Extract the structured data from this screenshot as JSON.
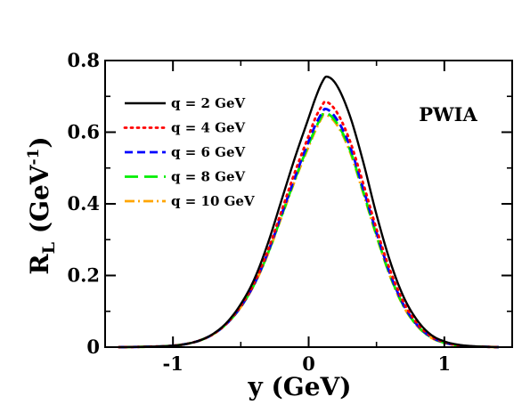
{
  "chart_data": {
    "type": "line",
    "xlabel": "y (GeV)",
    "ylabel_main": "R",
    "ylabel_sub": "L",
    "ylabel_unit": " (GeV",
    "ylabel_exp": "-1",
    "ylabel_close": ")",
    "xlim": [
      -1.5,
      1.5
    ],
    "ylim": [
      0,
      0.8
    ],
    "xticks": [
      {
        "value": -1,
        "label": "-1"
      },
      {
        "value": 0,
        "label": "0"
      },
      {
        "value": 1,
        "label": "1"
      }
    ],
    "yticks": [
      {
        "value": 0,
        "label": "0"
      },
      {
        "value": 0.2,
        "label": "0.2"
      },
      {
        "value": 0.4,
        "label": "0.4"
      },
      {
        "value": 0.6,
        "label": "0.6"
      },
      {
        "value": 0.8,
        "label": "0.8"
      }
    ],
    "annotation": "PWIA",
    "legend_position": "top-left",
    "grid": false,
    "series": [
      {
        "name": "q = 2 GeV",
        "color": "#000000",
        "dash": "solid",
        "peak": {
          "x": 0.13,
          "y": 0.755
        },
        "x": [
          -1.4,
          -1.2,
          -1.0,
          -0.9,
          -0.8,
          -0.7,
          -0.6,
          -0.5,
          -0.4,
          -0.3,
          -0.2,
          -0.1,
          0.0,
          0.05,
          0.1,
          0.13,
          0.2,
          0.3,
          0.4,
          0.5,
          0.6,
          0.7,
          0.8,
          0.9,
          1.0,
          1.1,
          1.2,
          1.3,
          1.4
        ],
        "y": [
          0.0,
          0.001,
          0.004,
          0.009,
          0.019,
          0.038,
          0.07,
          0.12,
          0.19,
          0.29,
          0.41,
          0.53,
          0.64,
          0.695,
          0.74,
          0.755,
          0.735,
          0.65,
          0.52,
          0.37,
          0.24,
          0.14,
          0.075,
          0.035,
          0.016,
          0.007,
          0.003,
          0.001,
          0.0
        ]
      },
      {
        "name": "q = 4 GeV",
        "color": "#ff0000",
        "dash": "dotted",
        "peak": {
          "x": 0.12,
          "y": 0.685
        },
        "x": [
          -1.4,
          -1.2,
          -1.0,
          -0.9,
          -0.8,
          -0.7,
          -0.6,
          -0.5,
          -0.4,
          -0.3,
          -0.2,
          -0.1,
          0.0,
          0.05,
          0.1,
          0.12,
          0.2,
          0.3,
          0.4,
          0.5,
          0.6,
          0.7,
          0.8,
          0.9,
          1.0,
          1.1,
          1.2,
          1.3,
          1.4
        ],
        "y": [
          0.0,
          0.001,
          0.004,
          0.009,
          0.019,
          0.037,
          0.068,
          0.115,
          0.18,
          0.27,
          0.38,
          0.49,
          0.59,
          0.64,
          0.675,
          0.685,
          0.66,
          0.58,
          0.46,
          0.33,
          0.215,
          0.125,
          0.066,
          0.031,
          0.014,
          0.006,
          0.002,
          0.001,
          0.0
        ]
      },
      {
        "name": "q = 6 GeV",
        "color": "#0000ff",
        "dash": "dashed",
        "peak": {
          "x": 0.12,
          "y": 0.665
        },
        "x": [
          -1.4,
          -1.2,
          -1.0,
          -0.9,
          -0.8,
          -0.7,
          -0.6,
          -0.5,
          -0.4,
          -0.3,
          -0.2,
          -0.1,
          0.0,
          0.05,
          0.1,
          0.12,
          0.2,
          0.3,
          0.4,
          0.5,
          0.6,
          0.7,
          0.8,
          0.9,
          1.0,
          1.1,
          1.2,
          1.3,
          1.4
        ],
        "y": [
          0.0,
          0.001,
          0.004,
          0.009,
          0.019,
          0.037,
          0.067,
          0.113,
          0.177,
          0.265,
          0.37,
          0.475,
          0.575,
          0.62,
          0.655,
          0.665,
          0.64,
          0.565,
          0.445,
          0.32,
          0.205,
          0.118,
          0.062,
          0.029,
          0.013,
          0.005,
          0.002,
          0.001,
          0.0
        ]
      },
      {
        "name": "q = 8 GeV",
        "color": "#00ee00",
        "dash": "longdash",
        "peak": {
          "x": 0.11,
          "y": 0.655
        },
        "x": [
          -1.4,
          -1.2,
          -1.0,
          -0.9,
          -0.8,
          -0.7,
          -0.6,
          -0.5,
          -0.4,
          -0.3,
          -0.2,
          -0.1,
          0.0,
          0.05,
          0.1,
          0.11,
          0.2,
          0.3,
          0.4,
          0.5,
          0.6,
          0.7,
          0.8,
          0.9,
          1.0,
          1.1,
          1.2,
          1.3,
          1.4
        ],
        "y": [
          0.0,
          0.001,
          0.004,
          0.009,
          0.019,
          0.037,
          0.067,
          0.112,
          0.176,
          0.262,
          0.366,
          0.47,
          0.566,
          0.61,
          0.648,
          0.655,
          0.63,
          0.555,
          0.437,
          0.313,
          0.2,
          0.115,
          0.06,
          0.028,
          0.012,
          0.005,
          0.002,
          0.001,
          0.0
        ]
      },
      {
        "name": "q = 10 GeV",
        "color": "#ffa500",
        "dash": "dashdot",
        "peak": {
          "x": 0.11,
          "y": 0.65
        },
        "x": [
          -1.4,
          -1.2,
          -1.0,
          -0.9,
          -0.8,
          -0.7,
          -0.6,
          -0.5,
          -0.4,
          -0.3,
          -0.2,
          -0.1,
          0.0,
          0.05,
          0.1,
          0.11,
          0.2,
          0.3,
          0.4,
          0.5,
          0.6,
          0.7,
          0.8,
          0.9,
          1.0,
          1.1,
          1.2,
          1.3,
          1.4
        ],
        "y": [
          0.0,
          0.001,
          0.004,
          0.009,
          0.019,
          0.037,
          0.067,
          0.112,
          0.175,
          0.26,
          0.363,
          0.466,
          0.56,
          0.605,
          0.643,
          0.65,
          0.625,
          0.55,
          0.433,
          0.31,
          0.198,
          0.113,
          0.059,
          0.027,
          0.012,
          0.005,
          0.002,
          0.001,
          0.0
        ]
      }
    ]
  }
}
